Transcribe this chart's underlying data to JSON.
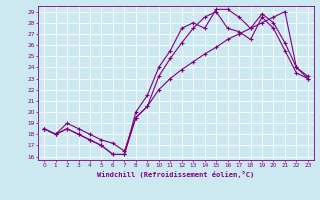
{
  "xlabel": "Windchill (Refroidissement éolien,°C)",
  "background_color": "#cce8f0",
  "line_color": "#800080",
  "grid_color": "#ffffff",
  "xlim": [
    -0.5,
    23.5
  ],
  "ylim": [
    15.7,
    29.5
  ],
  "xticks": [
    0,
    1,
    2,
    3,
    4,
    5,
    6,
    7,
    8,
    9,
    10,
    11,
    12,
    13,
    14,
    15,
    16,
    17,
    18,
    19,
    20,
    21,
    22,
    23
  ],
  "yticks": [
    16,
    17,
    18,
    19,
    20,
    21,
    22,
    23,
    24,
    25,
    26,
    27,
    28,
    29
  ],
  "curve1_x": [
    0,
    1,
    2,
    3,
    4,
    5,
    6,
    7,
    8,
    9,
    10,
    11,
    12,
    13,
    14,
    15,
    16,
    17,
    18,
    19,
    20,
    21,
    22,
    23
  ],
  "curve1_y": [
    18.5,
    18.0,
    18.5,
    18.0,
    17.5,
    17.0,
    16.2,
    16.2,
    20.0,
    21.5,
    24.0,
    25.5,
    27.5,
    28.0,
    27.5,
    29.2,
    29.2,
    28.5,
    27.5,
    28.8,
    28.0,
    26.2,
    24.0,
    23.0
  ],
  "curve2_x": [
    0,
    1,
    2,
    3,
    4,
    5,
    6,
    7,
    8,
    9,
    10,
    11,
    12,
    13,
    14,
    15,
    16,
    17,
    18,
    19,
    20,
    21,
    22,
    23
  ],
  "curve2_y": [
    18.5,
    18.0,
    19.0,
    18.5,
    18.0,
    17.5,
    17.2,
    16.5,
    19.5,
    20.5,
    23.2,
    24.8,
    26.2,
    27.5,
    28.5,
    29.0,
    27.5,
    27.2,
    26.5,
    28.5,
    27.5,
    25.5,
    23.5,
    23.0
  ],
  "curve3_x": [
    0,
    1,
    2,
    3,
    4,
    5,
    6,
    7,
    8,
    9,
    10,
    11,
    12,
    13,
    14,
    15,
    16,
    17,
    18,
    19,
    20,
    21,
    22,
    23
  ],
  "curve3_y": [
    18.5,
    18.0,
    18.5,
    18.0,
    17.5,
    17.0,
    16.2,
    16.2,
    19.5,
    20.5,
    22.0,
    23.0,
    23.8,
    24.5,
    25.2,
    25.8,
    26.5,
    27.0,
    27.5,
    28.0,
    28.5,
    29.0,
    24.0,
    23.2
  ],
  "xlabel_fontsize": 5.0,
  "tick_fontsize": 4.2,
  "marker": "+",
  "markersize": 2.5,
  "linewidth": 0.8
}
